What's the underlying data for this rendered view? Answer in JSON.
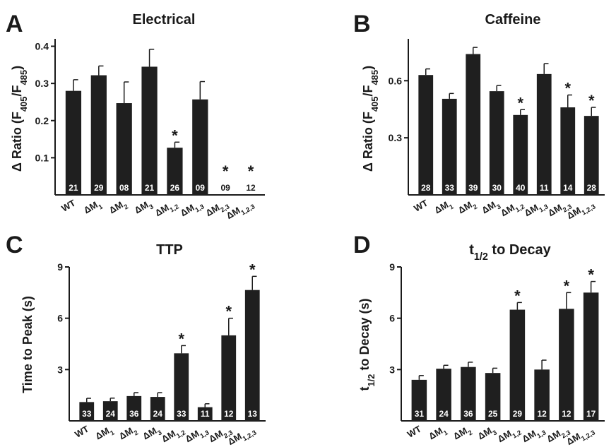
{
  "chart_data": [
    {
      "type": "bar",
      "panel": "A",
      "title": "Electrical",
      "ylabel": "Δ Ratio (F405/F485)",
      "ylim": [
        0,
        0.42
      ],
      "yticks": [
        0.1,
        0.2,
        0.3,
        0.4
      ],
      "ytick_labels": [
        "0.1",
        "0.2",
        "0.3",
        "0.4"
      ],
      "categories": [
        "WT",
        "ΔM1",
        "ΔM2",
        "ΔM3",
        "ΔM1,2",
        "ΔM1,3",
        "ΔM2,3",
        "ΔM1,2,3"
      ],
      "values": [
        0.28,
        0.322,
        0.247,
        0.345,
        0.127,
        0.257,
        0.0,
        0.0
      ],
      "errors": [
        0.03,
        0.025,
        0.057,
        0.047,
        0.015,
        0.048,
        0,
        0
      ],
      "n": [
        "21",
        "29",
        "08",
        "21",
        "26",
        "09",
        "09",
        "12"
      ],
      "significant": [
        false,
        false,
        false,
        false,
        true,
        false,
        true,
        true
      ]
    },
    {
      "type": "bar",
      "panel": "B",
      "title": "Caffeine",
      "ylabel": "Δ Ratio (F405/F485)",
      "ylim": [
        0,
        0.82
      ],
      "yticks": [
        0.3,
        0.6
      ],
      "ytick_labels": [
        "0.3",
        "0.6"
      ],
      "categories": [
        "WT",
        "ΔM1",
        "ΔM2",
        "ΔM3",
        "ΔM1,2",
        "ΔM1,3",
        "ΔM2,3",
        "ΔM1,2,3"
      ],
      "values": [
        0.63,
        0.505,
        0.74,
        0.545,
        0.42,
        0.635,
        0.46,
        0.415
      ],
      "errors": [
        0.032,
        0.028,
        0.035,
        0.03,
        0.028,
        0.055,
        0.065,
        0.045
      ],
      "n": [
        "28",
        "33",
        "39",
        "30",
        "40",
        "11",
        "14",
        "28"
      ],
      "significant": [
        false,
        false,
        false,
        false,
        true,
        false,
        true,
        true
      ]
    },
    {
      "type": "bar",
      "panel": "C",
      "title": "TTP",
      "ylabel": "Time to Peak (s)",
      "ylim": [
        0,
        9
      ],
      "yticks": [
        3,
        6,
        9
      ],
      "ytick_labels": [
        "3",
        "6",
        "9"
      ],
      "categories": [
        "WT",
        "ΔM1",
        "ΔM2",
        "ΔM3",
        "ΔM1,2",
        "ΔM1,3",
        "ΔM2,3",
        "ΔM1,2,3"
      ],
      "values": [
        1.1,
        1.15,
        1.45,
        1.4,
        3.95,
        0.8,
        5.0,
        7.65
      ],
      "errors": [
        0.22,
        0.18,
        0.2,
        0.25,
        0.45,
        0.2,
        1.0,
        0.8
      ],
      "n": [
        "33",
        "24",
        "36",
        "24",
        "33",
        "11",
        "12",
        "13"
      ],
      "significant": [
        false,
        false,
        false,
        false,
        true,
        false,
        true,
        true
      ]
    },
    {
      "type": "bar",
      "panel": "D",
      "title": "t1/2 to Decay",
      "ylabel": "t1/2 to Decay (s)",
      "ylim": [
        0,
        9
      ],
      "yticks": [
        3,
        6,
        9
      ],
      "ytick_labels": [
        "3",
        "6",
        "9"
      ],
      "categories": [
        "WT",
        "ΔM1",
        "ΔM2",
        "ΔM3",
        "ΔM1,2",
        "ΔM1,3",
        "ΔM2,3",
        "ΔM1,2,3"
      ],
      "values": [
        2.4,
        3.05,
        3.15,
        2.8,
        6.5,
        3.0,
        6.55,
        7.5
      ],
      "errors": [
        0.25,
        0.2,
        0.28,
        0.28,
        0.42,
        0.55,
        0.95,
        0.65
      ],
      "n": [
        "31",
        "24",
        "36",
        "25",
        "29",
        "12",
        "12",
        "17"
      ],
      "significant": [
        false,
        false,
        false,
        false,
        true,
        false,
        true,
        true
      ]
    }
  ]
}
